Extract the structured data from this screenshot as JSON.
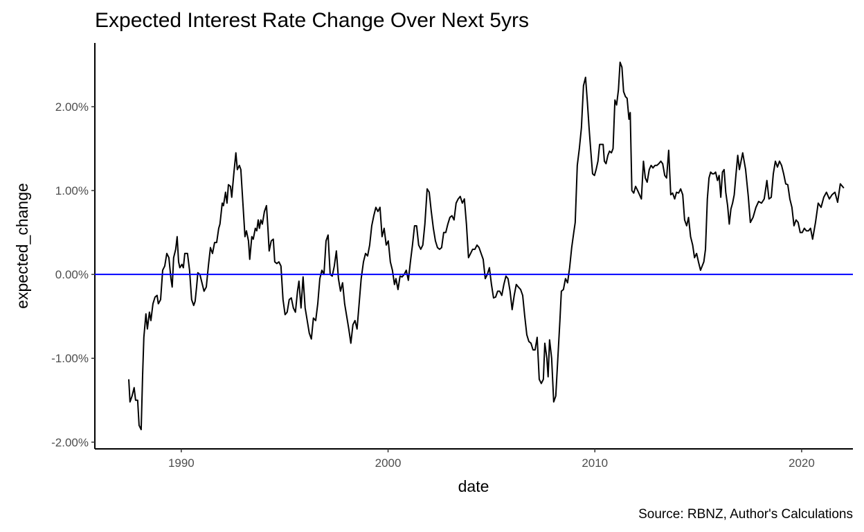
{
  "chart_data": {
    "type": "line",
    "title": "Expected Interest Rate Change Over Next 5yrs",
    "x_label": "date",
    "y_label": "expected_change",
    "caption": "Source: RBNZ, Author's Calculations",
    "color": "#000000",
    "hline": {
      "value": 0,
      "color": "#0000ff"
    },
    "xlim": [
      1985.82,
      2022.48
    ],
    "xticks": [
      1990,
      2000,
      2010,
      2020
    ],
    "ylim": [
      -2.08,
      2.76
    ],
    "yticks": [
      {
        "value": -2,
        "label": "-2.00%"
      },
      {
        "value": -1,
        "label": "-1.00%"
      },
      {
        "value": 0,
        "label": "0.00%"
      },
      {
        "value": 1,
        "label": "1.00%"
      },
      {
        "value": 2,
        "label": "2.00%"
      }
    ],
    "x": [
      1987.46,
      1987.52,
      1987.62,
      1987.72,
      1987.79,
      1987.89,
      1987.96,
      1988.06,
      1988.13,
      1988.19,
      1988.29,
      1988.36,
      1988.46,
      1988.53,
      1988.63,
      1988.73,
      1988.83,
      1988.89,
      1989.0,
      1989.1,
      1989.2,
      1989.3,
      1989.4,
      1989.5,
      1989.56,
      1989.63,
      1989.73,
      1989.8,
      1989.87,
      1989.93,
      1990.03,
      1990.1,
      1990.17,
      1990.3,
      1990.4,
      1990.5,
      1990.6,
      1990.67,
      1990.74,
      1990.8,
      1990.9,
      1991.0,
      1991.1,
      1991.21,
      1991.31,
      1991.41,
      1991.51,
      1991.61,
      1991.71,
      1991.81,
      1991.87,
      1991.98,
      1992.04,
      1992.14,
      1992.21,
      1992.28,
      1992.38,
      1992.44,
      1992.54,
      1992.64,
      1992.71,
      1992.81,
      1992.88,
      1992.98,
      1993.08,
      1993.15,
      1993.25,
      1993.31,
      1993.41,
      1993.48,
      1993.58,
      1993.65,
      1993.72,
      1993.78,
      1993.85,
      1993.92,
      1994.02,
      1994.12,
      1994.19,
      1994.25,
      1994.35,
      1994.45,
      1994.52,
      1994.62,
      1994.72,
      1994.82,
      1994.92,
      1995.02,
      1995.12,
      1995.22,
      1995.32,
      1995.42,
      1995.52,
      1995.62,
      1995.69,
      1995.79,
      1995.89,
      1995.99,
      1996.09,
      1996.19,
      1996.29,
      1996.39,
      1996.5,
      1996.6,
      1996.7,
      1996.8,
      1996.9,
      1997.0,
      1997.1,
      1997.2,
      1997.3,
      1997.4,
      1997.5,
      1997.6,
      1997.7,
      1997.8,
      1997.9,
      1998.0,
      1998.1,
      1998.2,
      1998.3,
      1998.4,
      1998.5,
      1998.6,
      1998.7,
      1998.81,
      1998.91,
      1999.01,
      1999.11,
      1999.21,
      1999.31,
      1999.41,
      1999.51,
      1999.61,
      1999.71,
      1999.81,
      1999.91,
      2000.01,
      2000.11,
      2000.21,
      2000.31,
      2000.38,
      2000.48,
      2000.58,
      2000.68,
      2000.78,
      2000.88,
      2000.98,
      2001.08,
      2001.18,
      2001.28,
      2001.38,
      2001.48,
      2001.58,
      2001.68,
      2001.78,
      2001.89,
      2001.99,
      2002.09,
      2002.19,
      2002.29,
      2002.39,
      2002.49,
      2002.59,
      2002.69,
      2002.79,
      2002.89,
      2002.99,
      2003.09,
      2003.19,
      2003.29,
      2003.39,
      2003.49,
      2003.59,
      2003.69,
      2003.79,
      2003.89,
      2003.99,
      2004.09,
      2004.2,
      2004.3,
      2004.4,
      2004.5,
      2004.6,
      2004.7,
      2004.8,
      2004.9,
      2005.0,
      2005.1,
      2005.2,
      2005.3,
      2005.4,
      2005.5,
      2005.6,
      2005.7,
      2005.8,
      2005.9,
      2006.0,
      2006.1,
      2006.2,
      2006.3,
      2006.41,
      2006.51,
      2006.61,
      2006.71,
      2006.81,
      2006.91,
      2007.01,
      2007.11,
      2007.21,
      2007.31,
      2007.41,
      2007.51,
      2007.58,
      2007.68,
      2007.74,
      2007.81,
      2007.91,
      2008.01,
      2008.11,
      2008.21,
      2008.31,
      2008.38,
      2008.48,
      2008.58,
      2008.68,
      2008.78,
      2008.88,
      2008.98,
      2009.05,
      2009.15,
      2009.25,
      2009.35,
      2009.45,
      2009.55,
      2009.64,
      2009.72,
      2009.81,
      2009.89,
      2009.98,
      2010.06,
      2010.15,
      2010.23,
      2010.32,
      2010.4,
      2010.46,
      2010.54,
      2010.63,
      2010.71,
      2010.8,
      2010.88,
      2010.97,
      2011.05,
      2011.14,
      2011.22,
      2011.31,
      2011.39,
      2011.48,
      2011.56,
      2011.65,
      2011.71,
      2011.79,
      2011.88,
      2011.97,
      2012.07,
      2012.16,
      2012.25,
      2012.35,
      2012.44,
      2012.53,
      2012.63,
      2012.72,
      2012.81,
      2012.91,
      2013.0,
      2013.09,
      2013.19,
      2013.28,
      2013.38,
      2013.47,
      2013.57,
      2013.67,
      2013.76,
      2013.86,
      2013.95,
      2014.05,
      2014.15,
      2014.25,
      2014.34,
      2014.44,
      2014.53,
      2014.63,
      2014.73,
      2014.82,
      2014.92,
      2015.01,
      2015.11,
      2015.19,
      2015.27,
      2015.35,
      2015.44,
      2015.52,
      2015.6,
      2015.68,
      2015.76,
      2015.84,
      2015.93,
      2016.01,
      2016.09,
      2016.17,
      2016.25,
      2016.33,
      2016.42,
      2016.5,
      2016.58,
      2016.66,
      2016.74,
      2016.82,
      2016.91,
      2016.99,
      2017.07,
      2017.15,
      2017.29,
      2017.42,
      2017.52,
      2017.65,
      2017.79,
      2017.92,
      2018.06,
      2018.19,
      2018.32,
      2018.42,
      2018.53,
      2018.63,
      2018.73,
      2018.83,
      2018.93,
      2019.03,
      2019.13,
      2019.23,
      2019.33,
      2019.43,
      2019.53,
      2019.63,
      2019.73,
      2019.83,
      2019.93,
      2020.03,
      2020.13,
      2020.23,
      2020.33,
      2020.43,
      2020.53,
      2020.67,
      2020.8,
      2020.94,
      2021.07,
      2021.2,
      2021.34,
      2021.47,
      2021.61,
      2021.74,
      2021.87,
      2022.04
    ],
    "values": [
      -1.25,
      -1.52,
      -1.45,
      -1.35,
      -1.5,
      -1.5,
      -1.8,
      -1.85,
      -1.2,
      -0.75,
      -0.47,
      -0.65,
      -0.45,
      -0.55,
      -0.35,
      -0.27,
      -0.25,
      -0.35,
      -0.3,
      0.05,
      0.1,
      0.25,
      0.2,
      -0.05,
      -0.15,
      0.2,
      0.3,
      0.45,
      0.15,
      0.08,
      0.12,
      0.08,
      0.25,
      0.25,
      0.05,
      -0.3,
      -0.37,
      -0.32,
      -0.15,
      0.02,
      0.0,
      -0.1,
      -0.2,
      -0.15,
      0.1,
      0.32,
      0.25,
      0.38,
      0.38,
      0.55,
      0.6,
      0.85,
      0.82,
      0.98,
      0.85,
      1.07,
      1.05,
      0.92,
      1.2,
      1.45,
      1.25,
      1.3,
      1.25,
      0.85,
      0.45,
      0.52,
      0.4,
      0.18,
      0.45,
      0.42,
      0.55,
      0.52,
      0.65,
      0.55,
      0.65,
      0.6,
      0.75,
      0.82,
      0.55,
      0.28,
      0.4,
      0.42,
      0.15,
      0.13,
      0.15,
      0.1,
      -0.3,
      -0.48,
      -0.45,
      -0.3,
      -0.28,
      -0.4,
      -0.45,
      -0.2,
      -0.08,
      -0.4,
      -0.03,
      -0.4,
      -0.55,
      -0.7,
      -0.77,
      -0.52,
      -0.55,
      -0.35,
      -0.05,
      0.05,
      0.0,
      0.4,
      0.47,
      0.0,
      -0.02,
      0.1,
      0.28,
      -0.05,
      -0.2,
      -0.1,
      -0.35,
      -0.5,
      -0.65,
      -0.82,
      -0.6,
      -0.55,
      -0.65,
      -0.35,
      -0.05,
      0.15,
      0.25,
      0.22,
      0.35,
      0.58,
      0.7,
      0.8,
      0.75,
      0.8,
      0.45,
      0.55,
      0.35,
      0.4,
      0.15,
      0.05,
      -0.12,
      -0.05,
      -0.18,
      -0.02,
      -0.03,
      0.0,
      0.05,
      -0.07,
      0.15,
      0.35,
      0.58,
      0.58,
      0.35,
      0.3,
      0.35,
      0.6,
      1.02,
      0.98,
      0.75,
      0.55,
      0.4,
      0.32,
      0.3,
      0.32,
      0.5,
      0.5,
      0.6,
      0.68,
      0.7,
      0.65,
      0.85,
      0.9,
      0.93,
      0.85,
      0.9,
      0.6,
      0.2,
      0.25,
      0.3,
      0.3,
      0.35,
      0.32,
      0.25,
      0.18,
      -0.05,
      0.0,
      0.08,
      -0.12,
      -0.28,
      -0.27,
      -0.2,
      -0.2,
      -0.25,
      -0.12,
      -0.02,
      -0.05,
      -0.2,
      -0.42,
      -0.25,
      -0.12,
      -0.15,
      -0.18,
      -0.25,
      -0.5,
      -0.72,
      -0.8,
      -0.82,
      -0.9,
      -0.9,
      -0.75,
      -1.25,
      -1.3,
      -1.25,
      -0.82,
      -1.0,
      -1.22,
      -0.78,
      -1.0,
      -1.52,
      -1.45,
      -1.0,
      -0.55,
      -0.2,
      -0.18,
      -0.05,
      -0.1,
      0.08,
      0.32,
      0.5,
      0.62,
      1.3,
      1.5,
      1.75,
      2.25,
      2.35,
      2.05,
      1.75,
      1.45,
      1.2,
      1.18,
      1.25,
      1.35,
      1.55,
      1.55,
      1.55,
      1.35,
      1.32,
      1.42,
      1.47,
      1.45,
      1.5,
      2.08,
      2.02,
      2.2,
      2.53,
      2.47,
      2.18,
      2.12,
      2.1,
      1.85,
      1.93,
      1.0,
      0.97,
      1.05,
      1.0,
      0.95,
      0.9,
      1.35,
      1.15,
      1.1,
      1.25,
      1.3,
      1.27,
      1.3,
      1.3,
      1.32,
      1.35,
      1.32,
      1.18,
      1.15,
      1.48,
      0.95,
      0.97,
      0.9,
      0.98,
      0.97,
      1.02,
      0.95,
      0.65,
      0.58,
      0.68,
      0.45,
      0.35,
      0.2,
      0.25,
      0.15,
      0.05,
      0.1,
      0.15,
      0.3,
      0.9,
      1.15,
      1.22,
      1.2,
      1.2,
      1.22,
      1.12,
      1.18,
      0.92,
      1.22,
      1.25,
      0.98,
      0.82,
      0.6,
      0.78,
      0.85,
      0.95,
      1.18,
      1.42,
      1.25,
      1.35,
      1.45,
      1.25,
      0.93,
      0.62,
      0.68,
      0.8,
      0.87,
      0.85,
      0.9,
      1.12,
      0.9,
      0.92,
      1.2,
      1.35,
      1.28,
      1.35,
      1.3,
      1.2,
      1.08,
      1.07,
      0.9,
      0.8,
      0.58,
      0.65,
      0.62,
      0.5,
      0.5,
      0.55,
      0.52,
      0.52,
      0.55,
      0.42,
      0.62,
      0.85,
      0.8,
      0.92,
      0.98,
      0.9,
      0.95,
      0.98,
      0.86,
      1.08,
      1.03
    ]
  }
}
